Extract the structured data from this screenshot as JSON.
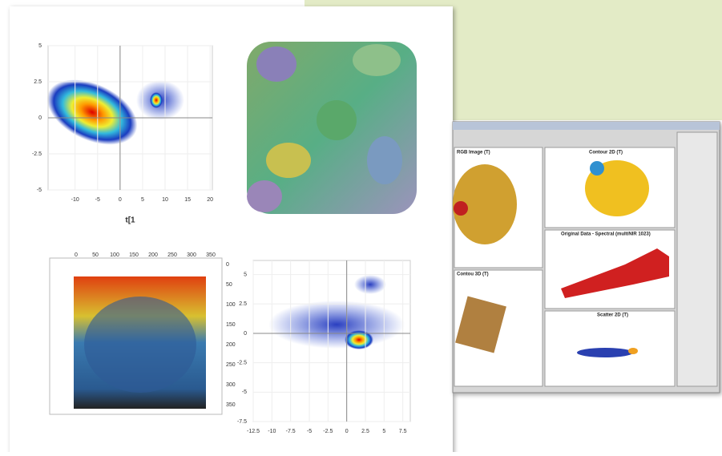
{
  "scatter_top": {
    "xlabel": "t[1",
    "xlim": [
      -16,
      20.5
    ],
    "ylim": [
      -5,
      5
    ],
    "xticks": [
      -10,
      -5,
      0,
      5,
      10,
      15,
      20
    ],
    "yticks": [
      -5,
      -2.5,
      0,
      2.5,
      5
    ]
  },
  "volume_3d": {
    "top_ticks": [
      0,
      50,
      100,
      150,
      200,
      250,
      300,
      350
    ],
    "right_ticks": [
      0,
      50,
      100,
      150,
      200,
      250,
      300,
      350
    ]
  },
  "scatter_bottom": {
    "xlim": [
      -12.5,
      8.5
    ],
    "ylim": [
      -7.5,
      6.2
    ],
    "xticks": [
      -12.5,
      -10,
      -7.5,
      -5,
      -2.5,
      0,
      2.5,
      5,
      7.5
    ],
    "yticks": [
      -7.5,
      -5,
      -2.5,
      0,
      2.5,
      5
    ]
  },
  "software": {
    "panels": [
      "RGB Image (T)",
      "Contour 2D (T)",
      "Original Data - Spectral (multiNIR 1023)",
      "Contou 3D (T)",
      "Scatter 2D (T)"
    ]
  }
}
